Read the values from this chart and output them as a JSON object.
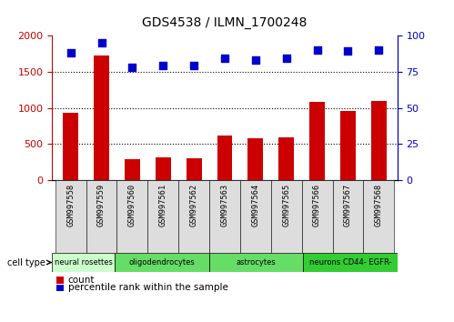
{
  "title": "GDS4538 / ILMN_1700248",
  "samples": [
    "GSM997558",
    "GSM997559",
    "GSM997560",
    "GSM997561",
    "GSM997562",
    "GSM997563",
    "GSM997564",
    "GSM997565",
    "GSM997566",
    "GSM997567",
    "GSM997568"
  ],
  "counts": [
    930,
    1720,
    290,
    320,
    300,
    620,
    575,
    590,
    1080,
    960,
    1090
  ],
  "percentile_ranks": [
    88,
    95,
    78,
    79,
    79,
    84,
    83,
    84,
    90,
    89,
    90
  ],
  "ylim_left": [
    0,
    2000
  ],
  "ylim_right": [
    0,
    100
  ],
  "yticks_left": [
    0,
    500,
    1000,
    1500,
    2000
  ],
  "yticks_right": [
    0,
    25,
    50,
    75,
    100
  ],
  "bar_color": "#cc0000",
  "dot_color": "#0000cc",
  "bg_color": "#ffffff",
  "cell_types": [
    {
      "label": "neural rosettes",
      "start": 0,
      "end": 2,
      "color": "#ccffcc"
    },
    {
      "label": "oligodendrocytes",
      "start": 2,
      "end": 5,
      "color": "#66dd66"
    },
    {
      "label": "astrocytes",
      "start": 5,
      "end": 8,
      "color": "#66dd66"
    },
    {
      "label": "neurons CD44- EGFR-",
      "start": 8,
      "end": 11,
      "color": "#33cc33"
    }
  ],
  "legend_count_label": "count",
  "legend_pct_label": "percentile rank within the sample",
  "tick_bg_color": "#dddddd"
}
